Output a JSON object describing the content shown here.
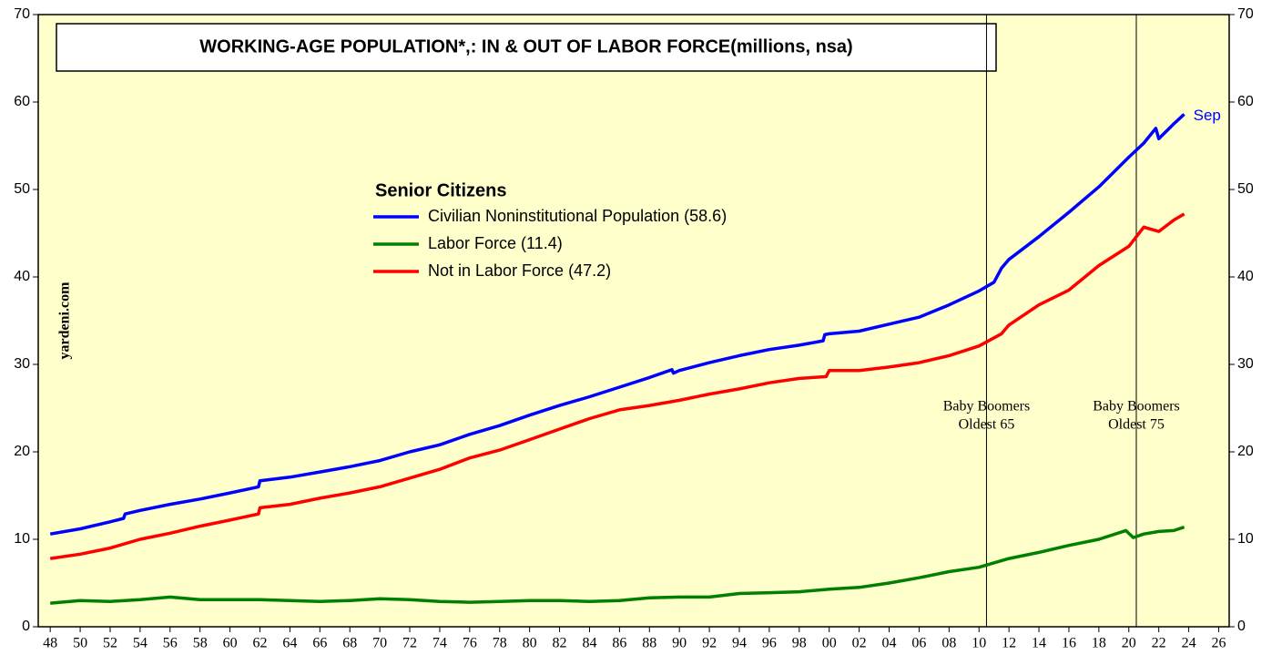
{
  "chart_data": {
    "type": "line",
    "title": "WORKING-AGE POPULATION*,: IN & OUT OF LABOR FORCE(millions, nsa)",
    "legend_title": "Senior Citizens",
    "source": "yardeni.com",
    "end_label": "Sep",
    "xlim": [
      1947.2,
      2026.7
    ],
    "ylim": [
      0,
      70
    ],
    "yticks": [
      0,
      10,
      20,
      30,
      40,
      50,
      60,
      70
    ],
    "xticks": [
      {
        "value": 1948,
        "label": "48"
      },
      {
        "value": 1950,
        "label": "50"
      },
      {
        "value": 1952,
        "label": "52"
      },
      {
        "value": 1954,
        "label": "54"
      },
      {
        "value": 1956,
        "label": "56"
      },
      {
        "value": 1958,
        "label": "58"
      },
      {
        "value": 1960,
        "label": "60"
      },
      {
        "value": 1962,
        "label": "62"
      },
      {
        "value": 1964,
        "label": "64"
      },
      {
        "value": 1966,
        "label": "66"
      },
      {
        "value": 1968,
        "label": "68"
      },
      {
        "value": 1970,
        "label": "70"
      },
      {
        "value": 1972,
        "label": "72"
      },
      {
        "value": 1974,
        "label": "74"
      },
      {
        "value": 1976,
        "label": "76"
      },
      {
        "value": 1978,
        "label": "78"
      },
      {
        "value": 1980,
        "label": "80"
      },
      {
        "value": 1982,
        "label": "82"
      },
      {
        "value": 1984,
        "label": "84"
      },
      {
        "value": 1986,
        "label": "86"
      },
      {
        "value": 1988,
        "label": "88"
      },
      {
        "value": 1990,
        "label": "90"
      },
      {
        "value": 1992,
        "label": "92"
      },
      {
        "value": 1994,
        "label": "94"
      },
      {
        "value": 1996,
        "label": "96"
      },
      {
        "value": 1998,
        "label": "98"
      },
      {
        "value": 2000,
        "label": "00"
      },
      {
        "value": 2002,
        "label": "02"
      },
      {
        "value": 2004,
        "label": "04"
      },
      {
        "value": 2006,
        "label": "06"
      },
      {
        "value": 2008,
        "label": "08"
      },
      {
        "value": 2010,
        "label": "10"
      },
      {
        "value": 2012,
        "label": "12"
      },
      {
        "value": 2014,
        "label": "14"
      },
      {
        "value": 2016,
        "label": "16"
      },
      {
        "value": 2018,
        "label": "18"
      },
      {
        "value": 2020,
        "label": "20"
      },
      {
        "value": 2022,
        "label": "22"
      },
      {
        "value": 2024,
        "label": "24"
      },
      {
        "value": 2026,
        "label": "26"
      }
    ],
    "vlines": [
      {
        "x": 2010.5,
        "label": [
          "Baby Boomers",
          "Oldest 65"
        ]
      },
      {
        "x": 2020.5,
        "label": [
          "Baby Boomers",
          "Oldest 75"
        ]
      }
    ],
    "series": [
      {
        "name": "Civilian Noninstitutional Population (58.6)",
        "color": "#0000ff",
        "x": [
          1948,
          1950,
          1952,
          1952.9,
          1953,
          1954,
          1956,
          1958,
          1960,
          1961.9,
          1962,
          1964,
          1966,
          1968,
          1970,
          1972,
          1974,
          1976,
          1978,
          1980,
          1982,
          1984,
          1986,
          1988,
          1989.5,
          1989.6,
          1990,
          1992,
          1994,
          1996,
          1998,
          1999.6,
          1999.7,
          2000,
          2002,
          2004,
          2006,
          2008,
          2010,
          2011,
          2011.5,
          2012,
          2014,
          2016,
          2018,
          2020,
          2021,
          2021.8,
          2022,
          2023,
          2023.7
        ],
        "values": [
          10.6,
          11.2,
          12.0,
          12.4,
          12.9,
          13.3,
          14.0,
          14.6,
          15.3,
          16.0,
          16.7,
          17.1,
          17.7,
          18.3,
          19.0,
          20.0,
          20.8,
          22.0,
          23.0,
          24.2,
          25.3,
          26.3,
          27.4,
          28.5,
          29.4,
          29.0,
          29.3,
          30.2,
          31.0,
          31.7,
          32.2,
          32.7,
          33.4,
          33.5,
          33.8,
          34.6,
          35.4,
          36.8,
          38.4,
          39.4,
          41.0,
          42.0,
          44.6,
          47.4,
          50.3,
          53.7,
          55.3,
          57.0,
          55.8,
          57.5,
          58.6
        ]
      },
      {
        "name": "Labor Force (11.4)",
        "color": "#008000",
        "x": [
          1948,
          1950,
          1952,
          1954,
          1956,
          1958,
          1960,
          1962,
          1964,
          1966,
          1968,
          1970,
          1972,
          1974,
          1976,
          1978,
          1980,
          1982,
          1984,
          1986,
          1988,
          1990,
          1992,
          1994,
          1996,
          1998,
          2000,
          2002,
          2004,
          2006,
          2008,
          2010,
          2012,
          2014,
          2016,
          2018,
          2019.8,
          2020.3,
          2021,
          2022,
          2023,
          2023.7
        ],
        "values": [
          2.7,
          3.0,
          2.9,
          3.1,
          3.4,
          3.1,
          3.1,
          3.1,
          3.0,
          2.9,
          3.0,
          3.2,
          3.1,
          2.9,
          2.8,
          2.9,
          3.0,
          3.0,
          2.9,
          3.0,
          3.3,
          3.4,
          3.4,
          3.8,
          3.9,
          4.0,
          4.3,
          4.5,
          5.0,
          5.6,
          6.3,
          6.8,
          7.8,
          8.5,
          9.3,
          10.0,
          11.0,
          10.2,
          10.6,
          10.9,
          11.0,
          11.4
        ]
      },
      {
        "name": "Not in Labor Force (47.2)",
        "color": "#ff0000",
        "x": [
          1948,
          1950,
          1952,
          1954,
          1956,
          1958,
          1960,
          1961.9,
          1962,
          1964,
          1966,
          1968,
          1970,
          1972,
          1974,
          1976,
          1978,
          1980,
          1982,
          1984,
          1986,
          1988,
          1990,
          1992,
          1994,
          1996,
          1998,
          1999.8,
          2000,
          2002,
          2004,
          2006,
          2008,
          2010,
          2011.5,
          2012,
          2014,
          2016,
          2018,
          2020,
          2021,
          2022,
          2023,
          2023.7
        ],
        "values": [
          7.8,
          8.3,
          9.0,
          10.0,
          10.7,
          11.5,
          12.2,
          12.9,
          13.6,
          14.0,
          14.7,
          15.3,
          16.0,
          17.0,
          18.0,
          19.3,
          20.2,
          21.4,
          22.6,
          23.8,
          24.8,
          25.3,
          25.9,
          26.6,
          27.2,
          27.9,
          28.4,
          28.6,
          29.3,
          29.3,
          29.7,
          30.2,
          31.0,
          32.1,
          33.5,
          34.5,
          36.8,
          38.5,
          41.3,
          43.5,
          45.7,
          45.2,
          46.5,
          47.2
        ]
      }
    ]
  }
}
